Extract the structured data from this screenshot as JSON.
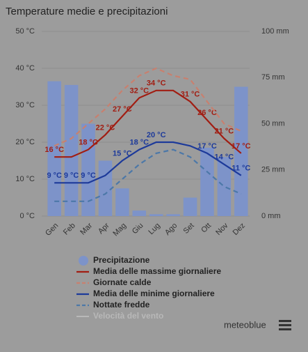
{
  "chart_data": {
    "type": "bar-line",
    "title": "Temperature medie e precipitazioni",
    "categories": [
      "Gen",
      "Feb",
      "Mar",
      "Apr",
      "Mag",
      "Giu",
      "Lug",
      "Ago",
      "Set",
      "Ott",
      "Nov",
      "Dez"
    ],
    "ylim": [
      0,
      50
    ],
    "yticks": [
      {
        "value": 0,
        "label": "0 °C"
      },
      {
        "value": 10,
        "label": "10 °C"
      },
      {
        "value": 20,
        "label": "20 °C"
      },
      {
        "value": 30,
        "label": "30 °C"
      },
      {
        "value": 40,
        "label": "40 °C"
      },
      {
        "value": 50,
        "label": "50 °C"
      }
    ],
    "y2lim": [
      0,
      100
    ],
    "y2ticks": [
      {
        "value": 0,
        "label": "0 mm"
      },
      {
        "value": 25,
        "label": "25 mm"
      },
      {
        "value": 50,
        "label": "50 mm"
      },
      {
        "value": 75,
        "label": "75 mm"
      },
      {
        "value": 100,
        "label": "100 mm"
      }
    ],
    "series": [
      {
        "name": "Precipitazione",
        "kind": "bar",
        "axis": "y2",
        "color": "#7d93c9",
        "values": [
          73,
          71,
          50,
          30,
          15,
          3,
          1,
          1,
          10,
          37,
          32,
          70
        ]
      },
      {
        "name": "Media delle massime giornaliere",
        "kind": "line",
        "color": "#a11d12",
        "values": [
          16,
          16,
          18,
          22,
          27,
          32,
          34,
          34,
          31,
          26,
          21,
          17
        ],
        "value_labels": [
          "16 °C",
          null,
          "18 °C",
          "22 °C",
          "27 °C",
          "32 °C",
          "34 °C",
          null,
          "31 °C",
          "26 °C",
          "21 °C",
          "17 °C"
        ]
      },
      {
        "name": "Giornate calde",
        "kind": "dashed",
        "color": "#c8806f",
        "values": [
          19,
          21,
          25,
          29,
          34,
          38,
          40,
          38,
          37,
          31,
          25,
          23
        ]
      },
      {
        "name": "Media delle minime giornaliere",
        "kind": "line",
        "color": "#1d3a9a",
        "values": [
          9,
          9,
          9,
          11,
          15,
          18,
          20,
          20,
          19,
          17,
          14,
          11
        ],
        "value_labels": [
          "9 °C",
          "9 °C",
          "9 °C",
          null,
          "15 °C",
          "18 °C",
          "20 °C",
          null,
          null,
          "17 °C",
          "14 °C",
          "11 °C"
        ]
      },
      {
        "name": "Nottate fredde",
        "kind": "dashed",
        "color": "#4c78a8",
        "values": [
          4,
          4,
          4,
          6,
          10,
          14,
          17,
          18,
          16,
          12,
          8,
          6
        ]
      }
    ],
    "legend_disabled": {
      "name": "Velocità del vento",
      "color": "#b8b8b8"
    },
    "brand": "meteoblue"
  }
}
